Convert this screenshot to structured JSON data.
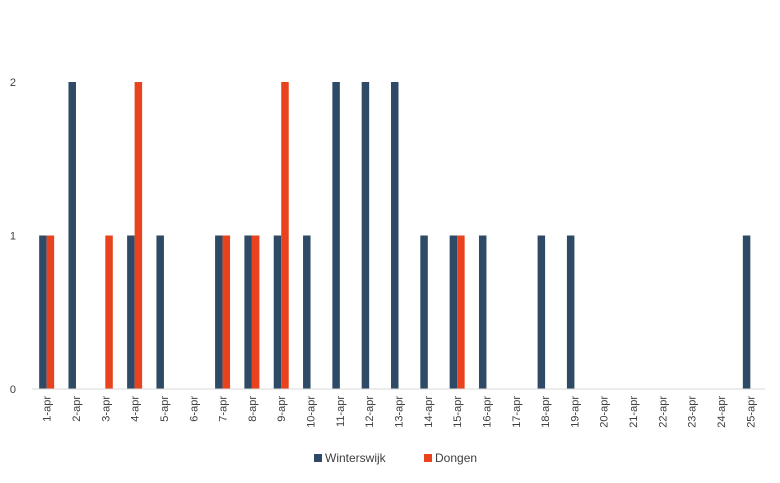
{
  "chart_data": {
    "type": "bar",
    "categories": [
      "1-apr",
      "2-apr",
      "3-apr",
      "4-apr",
      "5-apr",
      "6-apr",
      "7-apr",
      "8-apr",
      "9-apr",
      "10-apr",
      "11-apr",
      "12-apr",
      "13-apr",
      "14-apr",
      "15-apr",
      "16-apr",
      "17-apr",
      "18-apr",
      "19-apr",
      "20-apr",
      "21-apr",
      "22-apr",
      "23-apr",
      "24-apr",
      "25-apr"
    ],
    "series": [
      {
        "name": "Winterswijk",
        "color": "#2e4a66",
        "values": [
          1,
          2,
          0,
          1,
          1,
          0,
          1,
          1,
          1,
          1,
          2,
          2,
          2,
          1,
          1,
          1,
          0,
          1,
          1,
          0,
          0,
          0,
          0,
          0,
          1
        ]
      },
      {
        "name": "Dongen",
        "color": "#e8431e",
        "values": [
          1,
          0,
          1,
          2,
          0,
          0,
          1,
          1,
          2,
          0,
          0,
          0,
          0,
          0,
          1,
          0,
          0,
          0,
          0,
          0,
          0,
          0,
          0,
          0,
          0
        ]
      }
    ],
    "yticks": [
      "0",
      "1",
      "2"
    ],
    "ylim": [
      0,
      2
    ],
    "grid": false,
    "legend": "bottom",
    "title": "",
    "xlabel": "",
    "ylabel": ""
  }
}
